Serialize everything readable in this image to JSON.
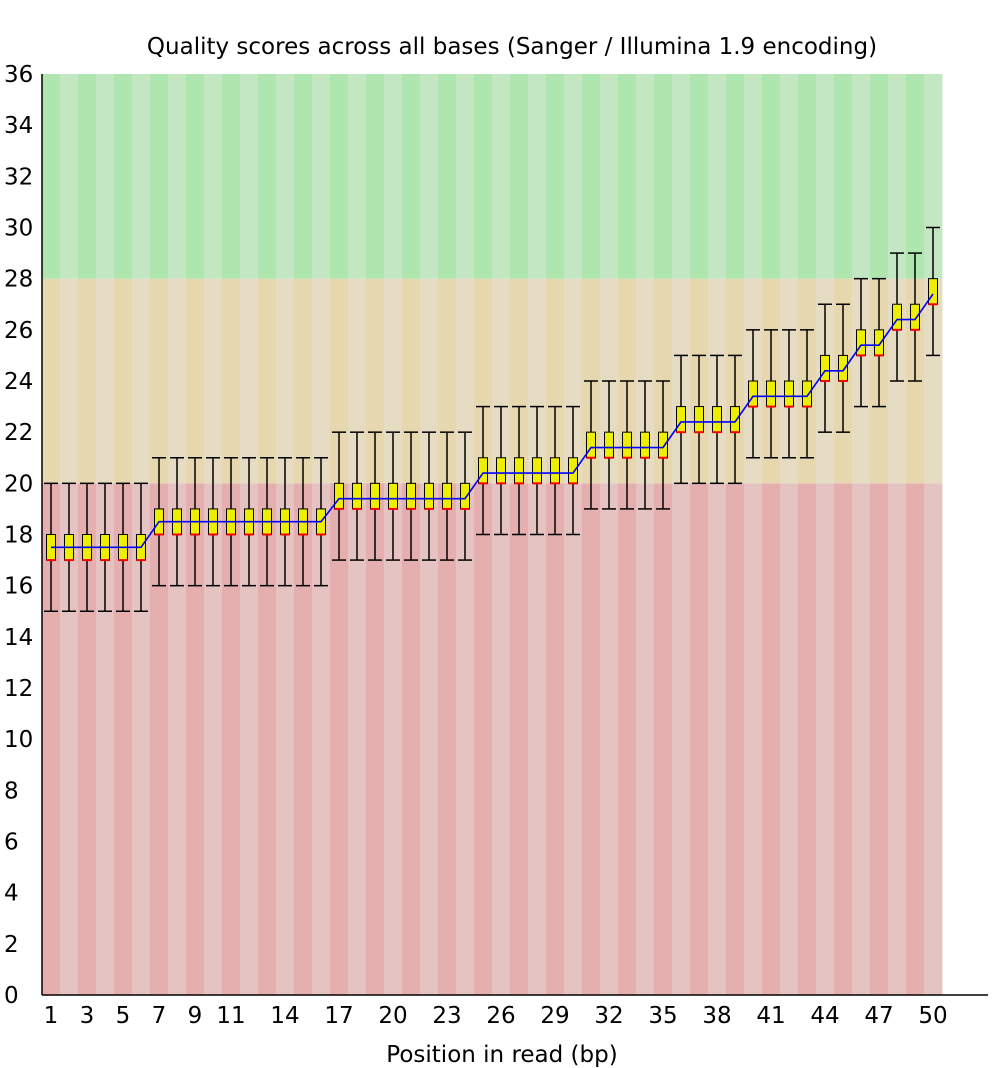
{
  "chart_data": {
    "type": "box",
    "title": "Quality scores across all bases (Sanger / Illumina 1.9 encoding)",
    "xlabel": "Position in read (bp)",
    "ylabel": "",
    "ylim": [
      0,
      36
    ],
    "y_ticks": [
      0,
      2,
      4,
      6,
      8,
      10,
      12,
      14,
      16,
      18,
      20,
      22,
      24,
      26,
      28,
      30,
      32,
      34,
      36
    ],
    "x_ticks": [
      "1",
      "3",
      "5",
      "7",
      "9",
      "11",
      "14",
      "17",
      "20",
      "23",
      "26",
      "29",
      "32",
      "35",
      "38",
      "41",
      "44",
      "47",
      "50"
    ],
    "zones": [
      {
        "from": 0,
        "to": 20,
        "color_a": "#e6afaf",
        "color_b": "#e6c3c3"
      },
      {
        "from": 20,
        "to": 28,
        "color_a": "#e6d7af",
        "color_b": "#e6dcc3"
      },
      {
        "from": 28,
        "to": 36,
        "color_a": "#afe6af",
        "color_b": "#c3e6c3"
      }
    ],
    "colors": {
      "box_fill": "#eeee00",
      "box_border": "#000000",
      "median": "#ff0000",
      "mean_line": "#0000ff",
      "whisker": "#000000"
    },
    "positions": [
      1,
      2,
      3,
      4,
      5,
      6,
      7,
      8,
      9,
      10,
      11,
      12,
      13,
      14,
      15,
      16,
      17,
      18,
      19,
      20,
      21,
      22,
      23,
      24,
      25,
      26,
      27,
      28,
      29,
      30,
      31,
      32,
      33,
      34,
      35,
      36,
      37,
      38,
      39,
      40,
      41,
      42,
      43,
      44,
      45,
      46,
      47,
      48,
      49,
      50
    ],
    "whisker_low": [
      15,
      15,
      15,
      15,
      15,
      15,
      16,
      16,
      16,
      16,
      16,
      16,
      16,
      16,
      16,
      16,
      17,
      17,
      17,
      17,
      17,
      17,
      17,
      17,
      18,
      18,
      18,
      18,
      18,
      18,
      19,
      19,
      19,
      19,
      19,
      20,
      20,
      20,
      20,
      21,
      21,
      21,
      21,
      22,
      22,
      23,
      23,
      24,
      24,
      25
    ],
    "q1": [
      17,
      17,
      17,
      17,
      17,
      17,
      18,
      18,
      18,
      18,
      18,
      18,
      18,
      18,
      18,
      18,
      19,
      19,
      19,
      19,
      19,
      19,
      19,
      19,
      20,
      20,
      20,
      20,
      20,
      20,
      21,
      21,
      21,
      21,
      21,
      22,
      22,
      22,
      22,
      23,
      23,
      23,
      23,
      24,
      24,
      25,
      25,
      26,
      26,
      27
    ],
    "median": [
      17,
      17,
      17,
      17,
      17,
      17,
      18,
      18,
      18,
      18,
      18,
      18,
      18,
      18,
      18,
      18,
      19,
      19,
      19,
      19,
      19,
      19,
      19,
      19,
      20,
      20,
      20,
      20,
      20,
      20,
      21,
      21,
      21,
      21,
      21,
      22,
      22,
      22,
      22,
      23,
      23,
      23,
      23,
      24,
      24,
      25,
      25,
      26,
      26,
      27
    ],
    "q3": [
      18,
      18,
      18,
      18,
      18,
      18,
      19,
      19,
      19,
      19,
      19,
      19,
      19,
      19,
      19,
      19,
      20,
      20,
      20,
      20,
      20,
      20,
      20,
      20,
      21,
      21,
      21,
      21,
      21,
      21,
      22,
      22,
      22,
      22,
      22,
      23,
      23,
      23,
      23,
      24,
      24,
      24,
      24,
      25,
      25,
      26,
      26,
      27,
      27,
      28
    ],
    "whisker_high": [
      20,
      20,
      20,
      20,
      20,
      20,
      21,
      21,
      21,
      21,
      21,
      21,
      21,
      21,
      21,
      21,
      22,
      22,
      22,
      22,
      22,
      22,
      22,
      22,
      23,
      23,
      23,
      23,
      23,
      23,
      24,
      24,
      24,
      24,
      24,
      25,
      25,
      25,
      25,
      26,
      26,
      26,
      26,
      27,
      27,
      28,
      28,
      29,
      29,
      30
    ],
    "mean": [
      17.5,
      17.5,
      17.5,
      17.5,
      17.5,
      17.5,
      18.5,
      18.5,
      18.5,
      18.5,
      18.5,
      18.5,
      18.5,
      18.5,
      18.5,
      18.5,
      19.4,
      19.4,
      19.4,
      19.4,
      19.4,
      19.4,
      19.4,
      19.4,
      20.4,
      20.4,
      20.4,
      20.4,
      20.4,
      20.4,
      21.4,
      21.4,
      21.4,
      21.4,
      21.4,
      22.4,
      22.4,
      22.4,
      22.4,
      23.4,
      23.4,
      23.4,
      23.4,
      24.4,
      24.4,
      25.4,
      25.4,
      26.4,
      26.4,
      27.4
    ]
  }
}
